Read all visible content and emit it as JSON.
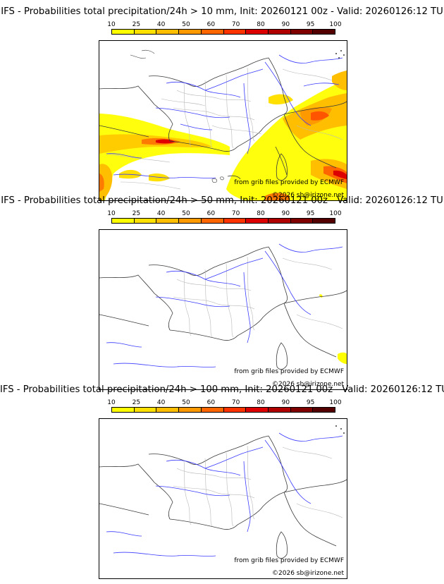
{
  "colors": {
    "border": "#3a3a3a",
    "admin": "#b8b8b8",
    "river": "#3a3aff",
    "scale": [
      "#ffff00",
      "#ffe000",
      "#ffbf00",
      "#ff9900",
      "#ff6600",
      "#ff3300",
      "#dd0000",
      "#b00000",
      "#800000",
      "#550000"
    ]
  },
  "legend": {
    "ticks": [
      "10",
      "25",
      "40",
      "50",
      "60",
      "70",
      "80",
      "90",
      "95",
      "100"
    ]
  },
  "credits": {
    "source": "from grib files provided by ECMWF",
    "copyright": "©2026 sb@irizone.net"
  },
  "panels": [
    {
      "title": "IFS - Probabilities total precipitation/24h > 10 mm, Init: 20260121 00z - Valid: 20260126:12 TU"
    },
    {
      "title": "IFS - Probabilities total precipitation/24h > 50 mm, Init: 20260121 00z - Valid: 20260126:12 TU"
    },
    {
      "title": "IFS - Probabilities total precipitation/24h > 100 mm, Init: 20260121 00z - Valid: 20260126:12 TU"
    }
  ]
}
